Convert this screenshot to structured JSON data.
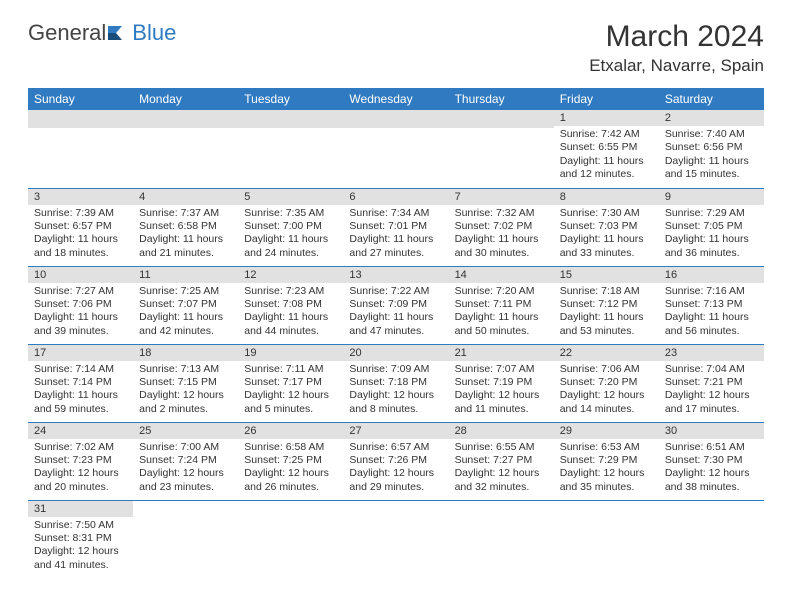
{
  "logo": {
    "text1": "General",
    "text2": "Blue"
  },
  "title": "March 2024",
  "location": "Etxalar, Navarre, Spain",
  "colors": {
    "header_bg": "#2f7ac0",
    "header_fg": "#ffffff",
    "daynum_bg": "#e1e1e1",
    "rule": "#2f7ac0"
  },
  "day_labels": [
    "Sunday",
    "Monday",
    "Tuesday",
    "Wednesday",
    "Thursday",
    "Friday",
    "Saturday"
  ],
  "weeks": [
    [
      {
        "n": "",
        "lines": []
      },
      {
        "n": "",
        "lines": []
      },
      {
        "n": "",
        "lines": []
      },
      {
        "n": "",
        "lines": []
      },
      {
        "n": "",
        "lines": []
      },
      {
        "n": "1",
        "lines": [
          "Sunrise: 7:42 AM",
          "Sunset: 6:55 PM",
          "Daylight: 11 hours",
          "and 12 minutes."
        ]
      },
      {
        "n": "2",
        "lines": [
          "Sunrise: 7:40 AM",
          "Sunset: 6:56 PM",
          "Daylight: 11 hours",
          "and 15 minutes."
        ]
      }
    ],
    [
      {
        "n": "3",
        "lines": [
          "Sunrise: 7:39 AM",
          "Sunset: 6:57 PM",
          "Daylight: 11 hours",
          "and 18 minutes."
        ]
      },
      {
        "n": "4",
        "lines": [
          "Sunrise: 7:37 AM",
          "Sunset: 6:58 PM",
          "Daylight: 11 hours",
          "and 21 minutes."
        ]
      },
      {
        "n": "5",
        "lines": [
          "Sunrise: 7:35 AM",
          "Sunset: 7:00 PM",
          "Daylight: 11 hours",
          "and 24 minutes."
        ]
      },
      {
        "n": "6",
        "lines": [
          "Sunrise: 7:34 AM",
          "Sunset: 7:01 PM",
          "Daylight: 11 hours",
          "and 27 minutes."
        ]
      },
      {
        "n": "7",
        "lines": [
          "Sunrise: 7:32 AM",
          "Sunset: 7:02 PM",
          "Daylight: 11 hours",
          "and 30 minutes."
        ]
      },
      {
        "n": "8",
        "lines": [
          "Sunrise: 7:30 AM",
          "Sunset: 7:03 PM",
          "Daylight: 11 hours",
          "and 33 minutes."
        ]
      },
      {
        "n": "9",
        "lines": [
          "Sunrise: 7:29 AM",
          "Sunset: 7:05 PM",
          "Daylight: 11 hours",
          "and 36 minutes."
        ]
      }
    ],
    [
      {
        "n": "10",
        "lines": [
          "Sunrise: 7:27 AM",
          "Sunset: 7:06 PM",
          "Daylight: 11 hours",
          "and 39 minutes."
        ]
      },
      {
        "n": "11",
        "lines": [
          "Sunrise: 7:25 AM",
          "Sunset: 7:07 PM",
          "Daylight: 11 hours",
          "and 42 minutes."
        ]
      },
      {
        "n": "12",
        "lines": [
          "Sunrise: 7:23 AM",
          "Sunset: 7:08 PM",
          "Daylight: 11 hours",
          "and 44 minutes."
        ]
      },
      {
        "n": "13",
        "lines": [
          "Sunrise: 7:22 AM",
          "Sunset: 7:09 PM",
          "Daylight: 11 hours",
          "and 47 minutes."
        ]
      },
      {
        "n": "14",
        "lines": [
          "Sunrise: 7:20 AM",
          "Sunset: 7:11 PM",
          "Daylight: 11 hours",
          "and 50 minutes."
        ]
      },
      {
        "n": "15",
        "lines": [
          "Sunrise: 7:18 AM",
          "Sunset: 7:12 PM",
          "Daylight: 11 hours",
          "and 53 minutes."
        ]
      },
      {
        "n": "16",
        "lines": [
          "Sunrise: 7:16 AM",
          "Sunset: 7:13 PM",
          "Daylight: 11 hours",
          "and 56 minutes."
        ]
      }
    ],
    [
      {
        "n": "17",
        "lines": [
          "Sunrise: 7:14 AM",
          "Sunset: 7:14 PM",
          "Daylight: 11 hours",
          "and 59 minutes."
        ]
      },
      {
        "n": "18",
        "lines": [
          "Sunrise: 7:13 AM",
          "Sunset: 7:15 PM",
          "Daylight: 12 hours",
          "and 2 minutes."
        ]
      },
      {
        "n": "19",
        "lines": [
          "Sunrise: 7:11 AM",
          "Sunset: 7:17 PM",
          "Daylight: 12 hours",
          "and 5 minutes."
        ]
      },
      {
        "n": "20",
        "lines": [
          "Sunrise: 7:09 AM",
          "Sunset: 7:18 PM",
          "Daylight: 12 hours",
          "and 8 minutes."
        ]
      },
      {
        "n": "21",
        "lines": [
          "Sunrise: 7:07 AM",
          "Sunset: 7:19 PM",
          "Daylight: 12 hours",
          "and 11 minutes."
        ]
      },
      {
        "n": "22",
        "lines": [
          "Sunrise: 7:06 AM",
          "Sunset: 7:20 PM",
          "Daylight: 12 hours",
          "and 14 minutes."
        ]
      },
      {
        "n": "23",
        "lines": [
          "Sunrise: 7:04 AM",
          "Sunset: 7:21 PM",
          "Daylight: 12 hours",
          "and 17 minutes."
        ]
      }
    ],
    [
      {
        "n": "24",
        "lines": [
          "Sunrise: 7:02 AM",
          "Sunset: 7:23 PM",
          "Daylight: 12 hours",
          "and 20 minutes."
        ]
      },
      {
        "n": "25",
        "lines": [
          "Sunrise: 7:00 AM",
          "Sunset: 7:24 PM",
          "Daylight: 12 hours",
          "and 23 minutes."
        ]
      },
      {
        "n": "26",
        "lines": [
          "Sunrise: 6:58 AM",
          "Sunset: 7:25 PM",
          "Daylight: 12 hours",
          "and 26 minutes."
        ]
      },
      {
        "n": "27",
        "lines": [
          "Sunrise: 6:57 AM",
          "Sunset: 7:26 PM",
          "Daylight: 12 hours",
          "and 29 minutes."
        ]
      },
      {
        "n": "28",
        "lines": [
          "Sunrise: 6:55 AM",
          "Sunset: 7:27 PM",
          "Daylight: 12 hours",
          "and 32 minutes."
        ]
      },
      {
        "n": "29",
        "lines": [
          "Sunrise: 6:53 AM",
          "Sunset: 7:29 PM",
          "Daylight: 12 hours",
          "and 35 minutes."
        ]
      },
      {
        "n": "30",
        "lines": [
          "Sunrise: 6:51 AM",
          "Sunset: 7:30 PM",
          "Daylight: 12 hours",
          "and 38 minutes."
        ]
      }
    ],
    [
      {
        "n": "31",
        "lines": [
          "Sunrise: 7:50 AM",
          "Sunset: 8:31 PM",
          "Daylight: 12 hours",
          "and 41 minutes."
        ]
      },
      {
        "n": "",
        "lines": []
      },
      {
        "n": "",
        "lines": []
      },
      {
        "n": "",
        "lines": []
      },
      {
        "n": "",
        "lines": []
      },
      {
        "n": "",
        "lines": []
      },
      {
        "n": "",
        "lines": []
      }
    ]
  ]
}
